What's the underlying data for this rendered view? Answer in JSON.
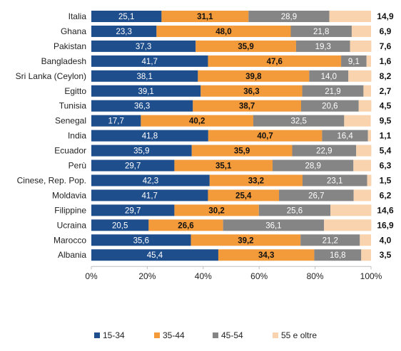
{
  "chart_data": {
    "type": "bar",
    "orientation": "horizontal",
    "stacked": "percent",
    "categories": [
      "Italia",
      "Ghana",
      "Pakistan",
      "Bangladesh",
      "Sri Lanka (Ceylon)",
      "Egitto",
      "Tunisia",
      "Senegal",
      "India",
      "Ecuador",
      "Perù",
      "Cinese, Rep. Pop.",
      "Moldavia",
      "Filippine",
      "Ucraina",
      "Marocco",
      "Albania"
    ],
    "series": [
      {
        "name": "15-34",
        "color": "#1f4e8c",
        "values": [
          25.1,
          23.3,
          37.3,
          41.7,
          38.1,
          39.1,
          36.3,
          17.7,
          41.8,
          35.9,
          29.7,
          42.3,
          41.7,
          29.7,
          20.5,
          35.6,
          45.4
        ],
        "labels": [
          "25,1",
          "23,3",
          "37,3",
          "41,7",
          "38,1",
          "39,1",
          "36,3",
          "17,7",
          "41,8",
          "35,9",
          "29,7",
          "42,3",
          "41,7",
          "29,7",
          "20,5",
          "35,6",
          "45,4"
        ]
      },
      {
        "name": "35-44",
        "color": "#f39a3b",
        "values": [
          31.1,
          48.0,
          35.9,
          47.6,
          39.8,
          36.3,
          38.7,
          40.2,
          40.7,
          35.9,
          35.1,
          33.2,
          25.4,
          30.2,
          26.6,
          39.2,
          34.3
        ],
        "labels": [
          "31,1",
          "48,0",
          "35,9",
          "47,6",
          "39,8",
          "36,3",
          "38,7",
          "40,2",
          "40,7",
          "35,9",
          "35,1",
          "33,2",
          "25,4",
          "30,2",
          "26,6",
          "39,2",
          "34,3"
        ]
      },
      {
        "name": "45-54",
        "color": "#858585",
        "values": [
          28.9,
          21.8,
          19.3,
          9.1,
          14.0,
          21.9,
          20.6,
          32.5,
          16.4,
          22.9,
          28.9,
          23.1,
          26.7,
          25.6,
          36.1,
          21.2,
          16.8
        ],
        "labels": [
          "28,9",
          "21,8",
          "19,3",
          "9,1",
          "14,0",
          "21,9",
          "20,6",
          "32,5",
          "16,4",
          "22,9",
          "28,9",
          "23,1",
          "26,7",
          "25,6",
          "36,1",
          "21,2",
          "16,8"
        ]
      },
      {
        "name": "55 e oltre",
        "color": "#f9d3ad",
        "values": [
          14.9,
          6.9,
          7.6,
          1.6,
          8.2,
          2.7,
          4.5,
          9.5,
          1.1,
          5.4,
          6.3,
          1.5,
          6.2,
          14.6,
          16.9,
          4.0,
          3.5
        ],
        "labels": [
          "14,9",
          "6,9",
          "7,6",
          "1,6",
          "8,2",
          "2,7",
          "4,5",
          "9,5",
          "1,1",
          "5,4",
          "6,3",
          "1,5",
          "6,2",
          "14,6",
          "16,9",
          "4,0",
          "3,5"
        ]
      }
    ],
    "label_styles": [
      "light",
      "dark",
      "light",
      "dark"
    ],
    "xlim": [
      0,
      100
    ],
    "x_ticks": [
      "0%",
      "20%",
      "40%",
      "60%",
      "80%",
      "100%"
    ],
    "grid": false,
    "legend_position": "bottom",
    "title": "",
    "xlabel": "",
    "ylabel": ""
  }
}
